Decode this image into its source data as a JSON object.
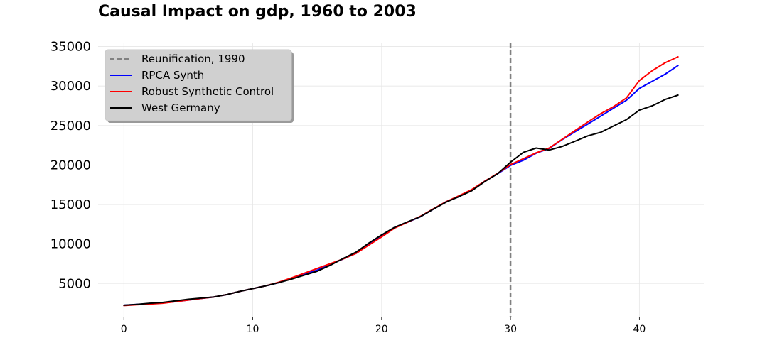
{
  "chart_data": {
    "type": "line",
    "title": "Causal Impact on gdp, 1960 to 2003",
    "xlabel": "",
    "ylabel": "",
    "xlim": [
      -2,
      45
    ],
    "ylim": [
      800,
      35500
    ],
    "xticks": [
      0,
      10,
      20,
      30,
      40
    ],
    "yticks": [
      5000,
      10000,
      15000,
      20000,
      25000,
      30000,
      35000
    ],
    "grid": true,
    "legend_position": "top-left",
    "vline": {
      "x": 30,
      "name": "Reunification, 1990",
      "color": "#808080",
      "style": "dashed"
    },
    "x": [
      0,
      1,
      2,
      3,
      4,
      5,
      6,
      7,
      8,
      9,
      10,
      11,
      12,
      13,
      14,
      15,
      16,
      17,
      18,
      19,
      20,
      21,
      22,
      23,
      24,
      25,
      26,
      27,
      28,
      29,
      30,
      31,
      32,
      33,
      34,
      35,
      36,
      37,
      38,
      39,
      40,
      41,
      42,
      43
    ],
    "series": [
      {
        "name": "RPCA Synth",
        "color": "#0000ff",
        "values": [
          2250,
          2350,
          2450,
          2550,
          2700,
          2900,
          3100,
          3300,
          3600,
          4000,
          4350,
          4700,
          5100,
          5600,
          6150,
          6700,
          7400,
          8100,
          8800,
          9900,
          11000,
          12100,
          12750,
          13450,
          14400,
          15350,
          16000,
          16800,
          17950,
          18900,
          19950,
          20600,
          21500,
          22100,
          23200,
          24200,
          25200,
          26200,
          27200,
          28200,
          29700,
          30600,
          31500,
          32600
        ]
      },
      {
        "name": "Robust Synthetic Control",
        "color": "#ff0000",
        "values": [
          2200,
          2300,
          2400,
          2500,
          2700,
          2900,
          3100,
          3300,
          3600,
          4000,
          4350,
          4700,
          5150,
          5700,
          6300,
          6900,
          7500,
          8100,
          8800,
          9850,
          10900,
          12000,
          12750,
          13500,
          14450,
          15350,
          16100,
          16900,
          17950,
          18950,
          20050,
          20800,
          21550,
          22150,
          23250,
          24350,
          25450,
          26500,
          27400,
          28500,
          30700,
          31950,
          32950,
          33700
        ]
      },
      {
        "name": "West Germany",
        "color": "#000000",
        "values": [
          2250,
          2350,
          2500,
          2600,
          2800,
          3000,
          3150,
          3300,
          3600,
          4000,
          4350,
          4700,
          5100,
          5550,
          6050,
          6550,
          7300,
          8150,
          8950,
          10100,
          11150,
          12100,
          12800,
          13450,
          14400,
          15300,
          16000,
          16750,
          17900,
          18900,
          20350,
          21600,
          22150,
          21900,
          22350,
          23000,
          23700,
          24150,
          24950,
          25750,
          26950,
          27500,
          28300,
          28850
        ]
      }
    ]
  }
}
